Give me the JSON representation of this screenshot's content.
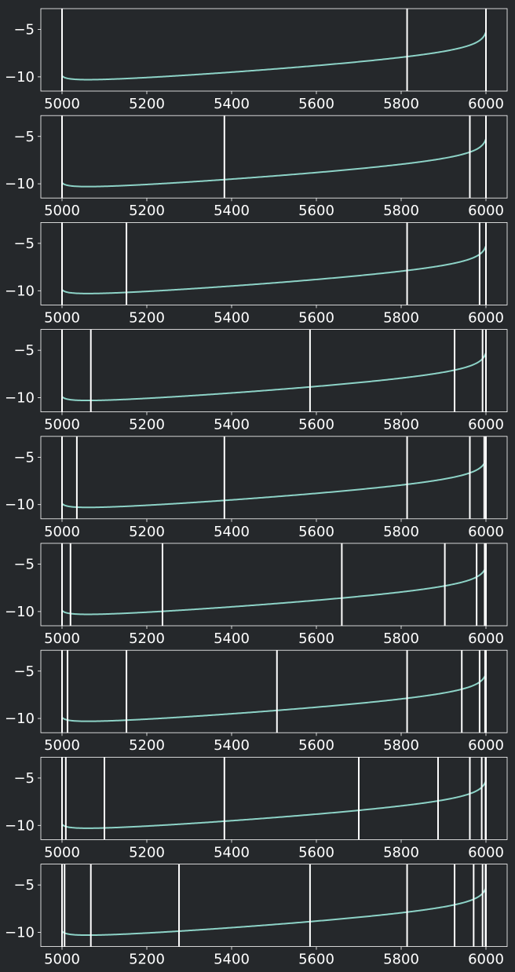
{
  "colors": {
    "background": "#25282b",
    "axes": "#ffffff",
    "curve": "#8dd3c7",
    "vlines": "#ffffff"
  },
  "chart_data": [
    {
      "type": "line",
      "x_range": [
        4950,
        6050
      ],
      "ylim": [
        -11.5,
        -2.8
      ],
      "xticks": [
        5000,
        5200,
        5400,
        5600,
        5800,
        6000
      ],
      "yticks": [
        -10,
        -5
      ],
      "vlines": [
        5000,
        5814,
        6000
      ]
    },
    {
      "type": "line",
      "x_range": [
        4950,
        6050
      ],
      "ylim": [
        -11.5,
        -2.8
      ],
      "xticks": [
        5000,
        5200,
        5400,
        5600,
        5800,
        6000
      ],
      "yticks": [
        -10,
        -5
      ],
      "vlines": [
        5000,
        5383,
        5962,
        6000
      ]
    },
    {
      "type": "line",
      "x_range": [
        4950,
        6050
      ],
      "ylim": [
        -11.5,
        -2.8
      ],
      "xticks": [
        5000,
        5200,
        5400,
        5600,
        5800,
        6000
      ],
      "yticks": [
        -10,
        -5
      ],
      "vlines": [
        5000,
        5152,
        5814,
        5985,
        6000
      ]
    },
    {
      "type": "line",
      "x_range": [
        4950,
        6050
      ],
      "ylim": [
        -11.5,
        -2.8
      ],
      "xticks": [
        5000,
        5200,
        5400,
        5600,
        5800,
        6000
      ],
      "yticks": [
        -10,
        -5
      ],
      "vlines": [
        5000,
        5068,
        5585,
        5926,
        5992,
        6000
      ]
    },
    {
      "type": "line",
      "x_range": [
        4950,
        6050
      ],
      "ylim": [
        -11.5,
        -2.8
      ],
      "xticks": [
        5000,
        5200,
        5400,
        5600,
        5800,
        6000
      ],
      "yticks": [
        -10,
        -5
      ],
      "vlines": [
        5000,
        5035,
        5383,
        5814,
        5962,
        5996,
        6000
      ]
    },
    {
      "type": "line",
      "x_range": [
        4950,
        6050
      ],
      "ylim": [
        -11.5,
        -2.8
      ],
      "xticks": [
        5000,
        5200,
        5400,
        5600,
        5800,
        6000
      ],
      "yticks": [
        -10,
        -5
      ],
      "vlines": [
        5000,
        5020,
        5237,
        5660,
        5903,
        5978,
        5997,
        6000
      ]
    },
    {
      "type": "line",
      "x_range": [
        4950,
        6050
      ],
      "ylim": [
        -11.5,
        -2.8
      ],
      "xticks": [
        5000,
        5200,
        5400,
        5600,
        5800,
        6000
      ],
      "yticks": [
        -10,
        -5
      ],
      "vlines": [
        5000,
        5013,
        5152,
        5507,
        5814,
        5943,
        5985,
        5998,
        6000
      ]
    },
    {
      "type": "line",
      "x_range": [
        4950,
        6050
      ],
      "ylim": [
        -11.5,
        -2.8
      ],
      "xticks": [
        5000,
        5200,
        5400,
        5600,
        5800,
        6000
      ],
      "yticks": [
        -10,
        -5
      ],
      "vlines": [
        5000,
        5009,
        5100,
        5383,
        5700,
        5887,
        5962,
        5990,
        5999,
        6000
      ]
    },
    {
      "type": "line",
      "x_range": [
        4950,
        6050
      ],
      "ylim": [
        -11.5,
        -2.8
      ],
      "xticks": [
        5000,
        5200,
        5400,
        5600,
        5800,
        6000
      ],
      "yticks": [
        -10,
        -5
      ],
      "vlines": [
        5000,
        5006,
        5068,
        5276,
        5585,
        5814,
        5926,
        5971,
        5992,
        5999,
        6000
      ]
    }
  ]
}
